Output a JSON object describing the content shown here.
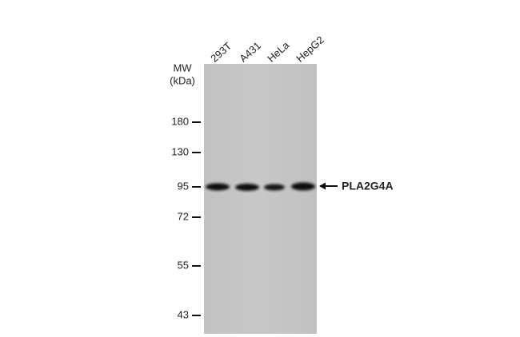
{
  "lanes": [
    "293T",
    "A431",
    "HeLa",
    "HepG2"
  ],
  "mw_label": "MW",
  "mw_unit": "(kDa)",
  "markers": [
    180,
    130,
    95,
    72,
    55,
    43
  ],
  "target": "PLA2G4A"
}
